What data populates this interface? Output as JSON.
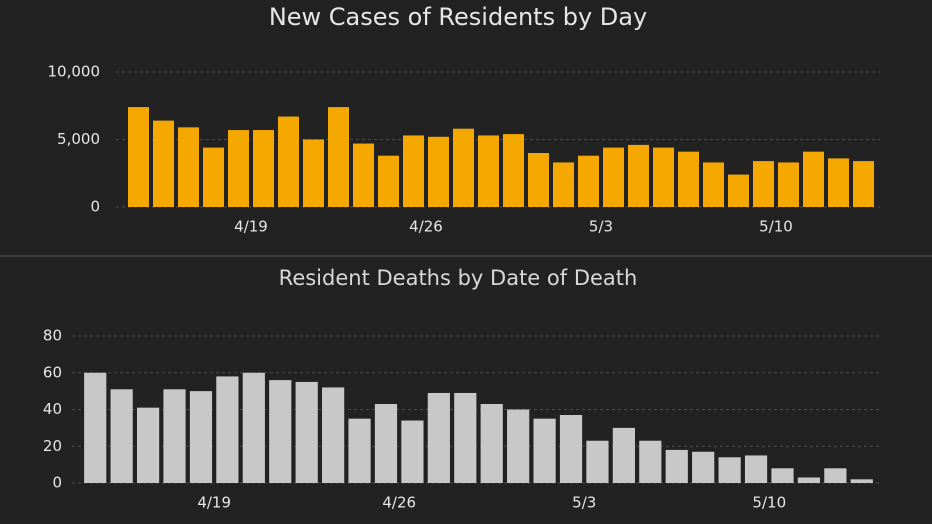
{
  "chart_data": [
    {
      "type": "bar",
      "title": "New Cases of Residents by Day",
      "color": "#f5a800",
      "categories": [
        null,
        null,
        null,
        null,
        null,
        "4/19",
        null,
        null,
        null,
        null,
        null,
        null,
        "4/26",
        null,
        null,
        null,
        null,
        null,
        null,
        "5/3",
        null,
        null,
        null,
        null,
        null,
        null,
        "5/10",
        null,
        null,
        null
      ],
      "values": [
        7400,
        6400,
        5900,
        4400,
        5700,
        5700,
        6700,
        5000,
        7400,
        4700,
        3800,
        5300,
        5200,
        5800,
        5300,
        5400,
        4000,
        3300,
        3800,
        4400,
        4600,
        4400,
        4100,
        3300,
        2400,
        3400,
        3300,
        4100,
        3600,
        3400
      ],
      "ylim": [
        0,
        10000
      ],
      "yticks": [
        0,
        {
          "value": 5000,
          "label": "5,000"
        },
        {
          "value": 10000,
          "label": "10,000"
        }
      ],
      "grid": true
    },
    {
      "type": "bar",
      "title": "Resident Deaths by Date of Death",
      "color": "#c8c8c8",
      "categories": [
        null,
        null,
        null,
        null,
        null,
        "4/19",
        null,
        null,
        null,
        null,
        null,
        null,
        "4/26",
        null,
        null,
        null,
        null,
        null,
        null,
        "5/3",
        null,
        null,
        null,
        null,
        null,
        null,
        "5/10",
        null,
        null,
        null
      ],
      "values": [
        60,
        51,
        41,
        51,
        50,
        58,
        60,
        56,
        55,
        52,
        35,
        43,
        34,
        49,
        49,
        43,
        40,
        35,
        37,
        23,
        30,
        23,
        18,
        17,
        14,
        15,
        8,
        3,
        8,
        2
      ],
      "ylim": [
        0,
        80
      ],
      "yticks": [
        0,
        20,
        40,
        60,
        80
      ],
      "grid": true
    }
  ]
}
